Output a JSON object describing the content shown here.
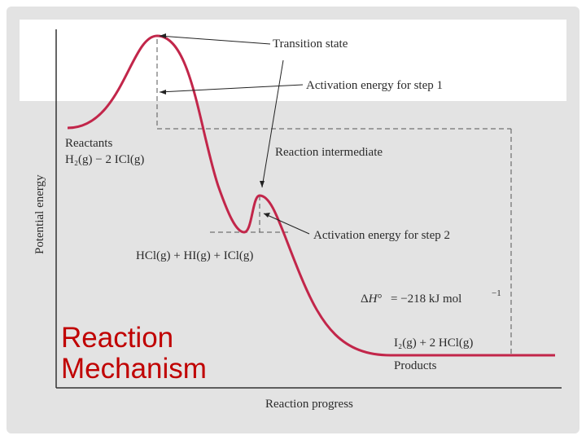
{
  "slide": {
    "title_line1": "Reaction",
    "title_line2": "Mechanism"
  },
  "colors": {
    "curve": "#c2264a",
    "slide_background": "#e3e3e3",
    "title": "#c00000"
  },
  "diagram": {
    "axes": {
      "y_label": "Potential energy",
      "x_label": "Reaction progress"
    },
    "annotations": {
      "transition_state": "Transition state",
      "activation_energy_step1": "Activation energy for step 1",
      "reaction_intermediate": "Reaction intermediate",
      "activation_energy_step2": "Activation energy for step 2",
      "delta_h_value": "= −218 kJ mol",
      "delta_h_exponent": "−1"
    },
    "reactants": {
      "label": "Reactants",
      "formula": "H₂(g) − 2 ICl(g)"
    },
    "intermediate_species": "HCl(g) + HI(g) + ICl(g)",
    "products": {
      "formula": "I₂(g) + 2 HCl(g)",
      "label": "Products"
    }
  }
}
